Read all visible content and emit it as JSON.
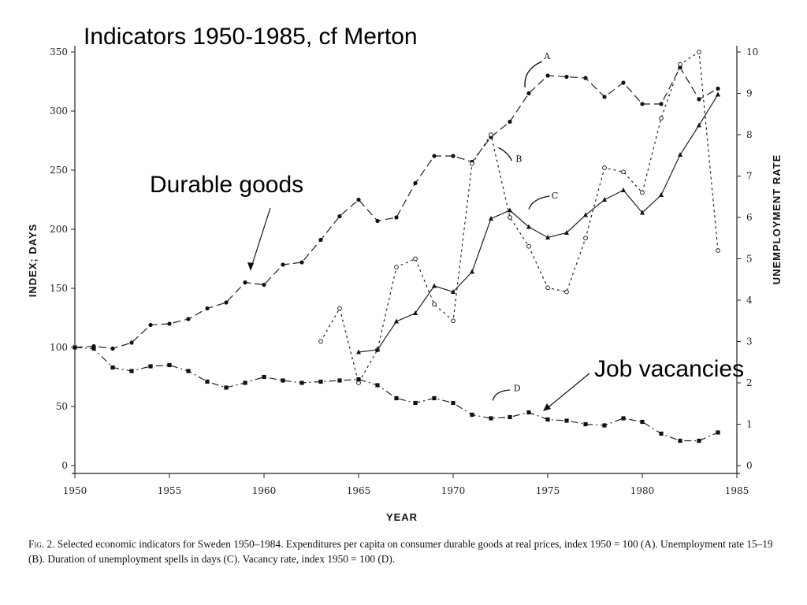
{
  "slide": {
    "title": "Indicators 1950-1985, cf Merton",
    "callout_durable": "Durable goods",
    "callout_vacancy": "Job vacancies"
  },
  "caption": {
    "lead": "Fig. 2.",
    "text": "Selected economic indicators for Sweden 1950–1984. Expenditures per capita on consumer durable goods at real prices, index 1950 = 100 (A). Unemployment rate 15–19 (B). Duration of unemployment spells in days (C). Vacancy rate, index 1950 = 100 (D)."
  },
  "chart_data": {
    "type": "line",
    "title": "",
    "xlabel": "YEAR",
    "ylabel": "INDEX; DAYS",
    "y2label": "UNEMPLOYMENT RATE",
    "xlim": [
      1950,
      1985
    ],
    "ylim": [
      0,
      350
    ],
    "y2lim": [
      0,
      10
    ],
    "x_ticks": [
      1950,
      1955,
      1960,
      1965,
      1970,
      1975,
      1980,
      1985
    ],
    "y_ticks": [
      0,
      50,
      100,
      150,
      200,
      250,
      300,
      350
    ],
    "y2_ticks": [
      0,
      1,
      2,
      3,
      4,
      5,
      6,
      7,
      8,
      9,
      10
    ],
    "grid": false,
    "series": [
      {
        "name": "A",
        "axis": "left",
        "style": "dashed",
        "marker": "filled-circle",
        "x": [
          1950,
          1951,
          1952,
          1953,
          1954,
          1955,
          1956,
          1957,
          1958,
          1959,
          1960,
          1961,
          1962,
          1963,
          1964,
          1965,
          1966,
          1967,
          1968,
          1969,
          1970,
          1971,
          1972,
          1973,
          1974,
          1975,
          1976,
          1977,
          1978,
          1979,
          1980,
          1981,
          1982,
          1983,
          1984
        ],
        "values": [
          100,
          101,
          99,
          104,
          119,
          120,
          124,
          133,
          138,
          155,
          153,
          170,
          172,
          191,
          211,
          225,
          207,
          210,
          239,
          262,
          262,
          257,
          278,
          291,
          315,
          330,
          329,
          328,
          312,
          324,
          306,
          306,
          337,
          310,
          319
        ]
      },
      {
        "name": "B",
        "axis": "right",
        "style": "dotted",
        "marker": "open-circle",
        "x": [
          1963,
          1964,
          1965,
          1966,
          1967,
          1968,
          1969,
          1970,
          1971,
          1972,
          1973,
          1974,
          1975,
          1976,
          1977,
          1978,
          1979,
          1980,
          1981,
          1982,
          1983,
          1984
        ],
        "values": [
          3.0,
          3.8,
          2.0,
          2.8,
          4.8,
          5.0,
          3.9,
          3.5,
          7.3,
          8.0,
          6.0,
          5.3,
          4.3,
          4.2,
          5.5,
          7.2,
          7.1,
          6.6,
          8.4,
          9.7,
          10.0,
          5.2
        ]
      },
      {
        "name": "C",
        "axis": "left",
        "style": "solid",
        "marker": "triangle",
        "x": [
          1965,
          1966,
          1967,
          1968,
          1969,
          1970,
          1971,
          1972,
          1973,
          1974,
          1975,
          1976,
          1977,
          1978,
          1979,
          1980,
          1981,
          1982,
          1983,
          1984
        ],
        "values": [
          96,
          98,
          122,
          129,
          152,
          147,
          164,
          209,
          216,
          202,
          193,
          197,
          212,
          225,
          233,
          214,
          229,
          263,
          288,
          314
        ]
      },
      {
        "name": "D",
        "axis": "left",
        "style": "dash-dot",
        "marker": "filled-square",
        "x": [
          1950,
          1951,
          1952,
          1953,
          1954,
          1955,
          1956,
          1957,
          1958,
          1959,
          1960,
          1961,
          1962,
          1963,
          1964,
          1965,
          1966,
          1967,
          1968,
          1969,
          1970,
          1971,
          1972,
          1973,
          1974,
          1975,
          1976,
          1977,
          1978,
          1979,
          1980,
          1981,
          1982,
          1983,
          1984
        ],
        "values": [
          100,
          99,
          83,
          80,
          84,
          85,
          80,
          71,
          66,
          70,
          75,
          72,
          70,
          71,
          72,
          73,
          68,
          57,
          53,
          57,
          53,
          43,
          40,
          41,
          45,
          39,
          38,
          35,
          34,
          40,
          37,
          27,
          21,
          21,
          28
        ]
      }
    ]
  }
}
